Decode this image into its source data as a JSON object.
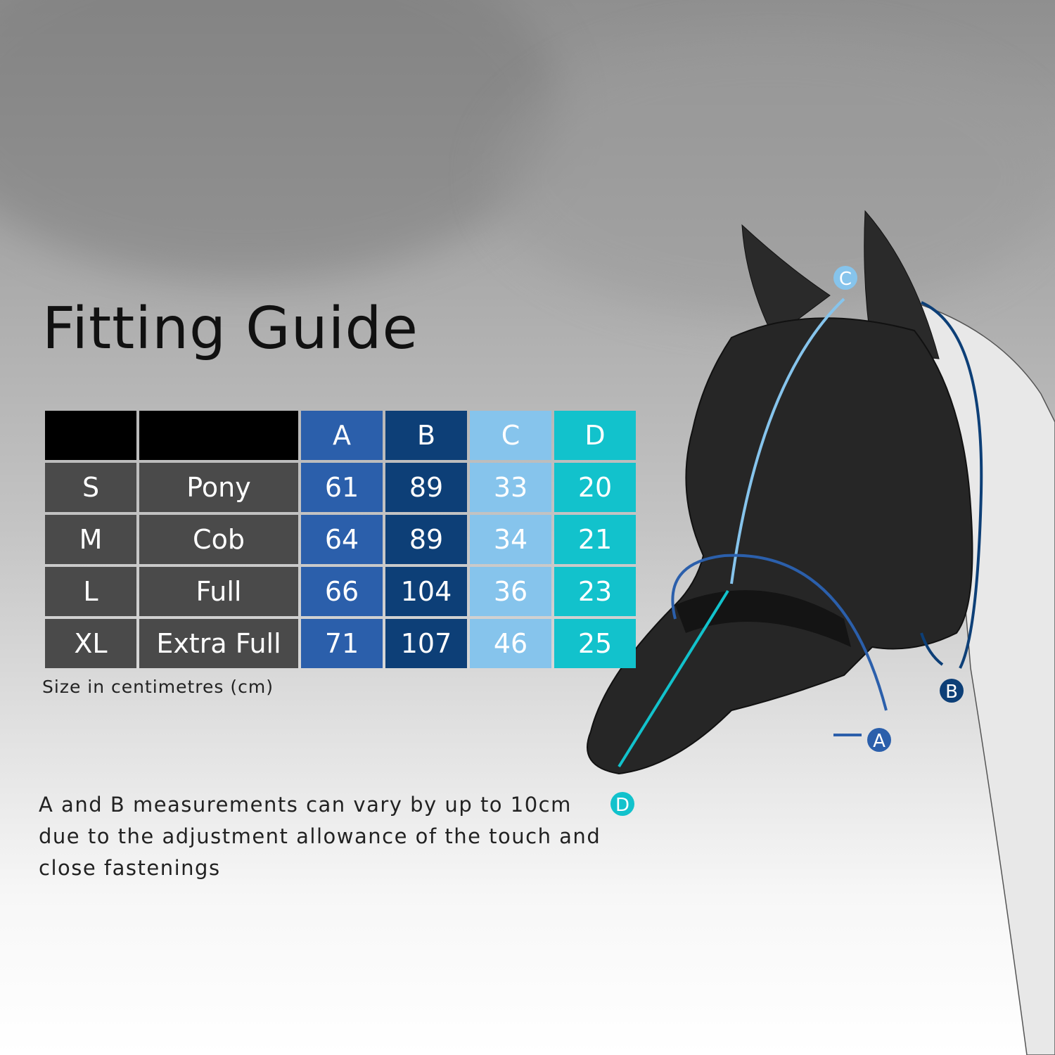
{
  "title": "Fitting Guide",
  "table": {
    "headers": [
      "",
      "",
      "A",
      "B",
      "C",
      "D"
    ],
    "rows": [
      [
        "S",
        "Pony",
        "61",
        "89",
        "33",
        "20"
      ],
      [
        "M",
        "Cob",
        "64",
        "89",
        "34",
        "21"
      ],
      [
        "L",
        "Full",
        "66",
        "104",
        "36",
        "23"
      ],
      [
        "XL",
        "Extra Full",
        "71",
        "107",
        "46",
        "25"
      ]
    ]
  },
  "unit_note": "Size in centimetres (cm)",
  "description": "A and B measurements can vary by up to 10cm due to the adjustment allowance of the touch and close fastenings",
  "diagram_labels": {
    "a": "A",
    "b": "B",
    "c": "C",
    "d": "D"
  },
  "colors": {
    "A": "#2b5fab",
    "B": "#0d3f77",
    "C": "#86c4ec",
    "D": "#12c2cc",
    "size_cells": "#4a4a4a",
    "header": "#000000"
  }
}
